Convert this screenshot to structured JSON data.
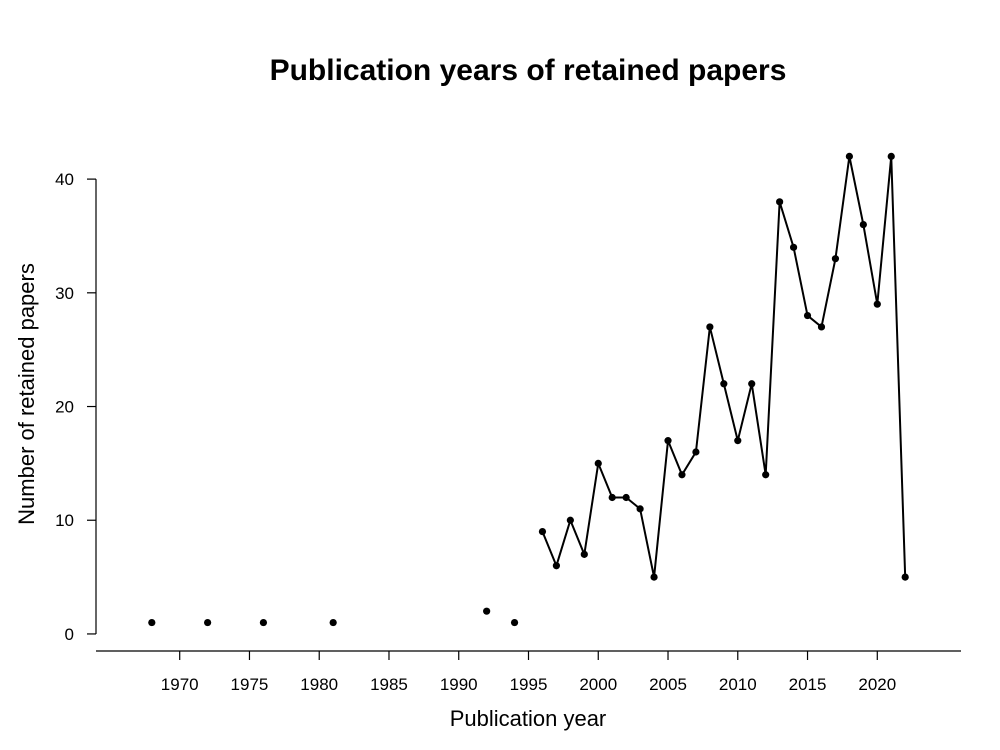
{
  "chart_data": {
    "type": "line",
    "title": "Publication years of retained papers",
    "xlabel": "Publication year",
    "ylabel": "Number of retained papers",
    "xlim": [
      1964,
      2026
    ],
    "ylim": [
      -1.5,
      43
    ],
    "x_ticks": [
      1970,
      1975,
      1980,
      1985,
      1990,
      1995,
      2000,
      2005,
      2010,
      2015,
      2020
    ],
    "y_ticks": [
      0,
      10,
      20,
      30,
      40
    ],
    "grid": false,
    "series": [
      {
        "x": [
          1968,
          1972,
          1976,
          1981,
          1992,
          1994,
          1996,
          1997,
          1998,
          1999,
          2000,
          2001,
          2002,
          2003,
          2004,
          2005,
          2006,
          2007,
          2008,
          2009,
          2010,
          2011,
          2012,
          2013,
          2014,
          2015,
          2016,
          2017,
          2018,
          2019,
          2020,
          2021,
          2022
        ],
        "values": [
          1,
          1,
          1,
          1,
          2,
          1,
          9,
          6,
          10,
          7,
          15,
          12,
          12,
          11,
          5,
          17,
          14,
          16,
          27,
          22,
          17,
          22,
          14,
          38,
          34,
          28,
          27,
          33,
          42,
          36,
          29,
          42,
          5
        ]
      }
    ]
  }
}
